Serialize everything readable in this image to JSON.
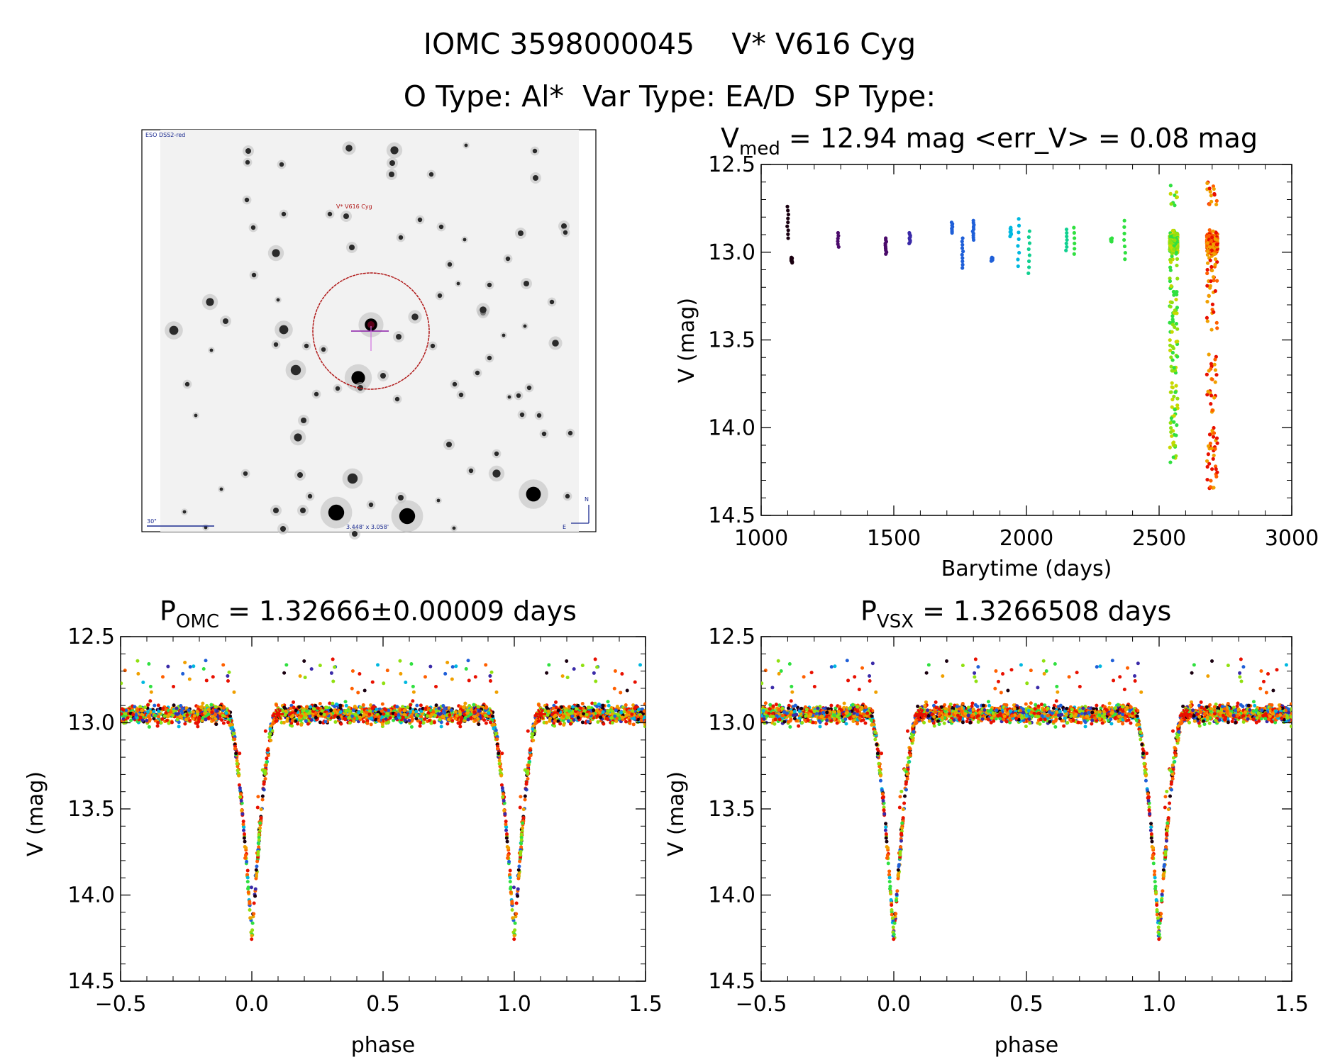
{
  "header": {
    "line1": "IOMC 3598000045    V* V616 Cyg",
    "line2": "O Type: Al*  Var Type: EA/D  SP Type:"
  },
  "finder": {
    "survey_label": "ESO DSS2-red",
    "target_label": "V* V616 Cyg",
    "scale_label": "30\"",
    "fov_label": "3.448' x 3.058'",
    "north_label": "N",
    "east_label": "E"
  },
  "colors": {
    "palette": [
      "#1a0010",
      "#4a0a6a",
      "#3a2aa8",
      "#1f5fd8",
      "#00b8e0",
      "#10d090",
      "#30e040",
      "#90e010",
      "#c8d800",
      "#f0a000",
      "#ff6000",
      "#e81000"
    ],
    "circle": "#b01818",
    "target_text": "#b01818",
    "finder_text": "#1a2a90"
  },
  "chart_data": [
    {
      "id": "lightcurve",
      "type": "scatter",
      "title": "V_med = 12.94 mag <err_V> = 0.08 mag",
      "title_parts": {
        "v": "V",
        "sub": "med",
        "rest": " = 12.94 mag <err_V> = 0.08 mag"
      },
      "xlabel": "Barytime (days)",
      "ylabel": "V (mag)",
      "xlim": [
        1000,
        3000
      ],
      "ylim": [
        14.5,
        12.5
      ],
      "xticks": [
        1000,
        1500,
        2000,
        2500,
        3000
      ],
      "xtick_labels": [
        "1000",
        "1500",
        "2000",
        "2500",
        "3000"
      ],
      "yticks": [
        12.5,
        13.0,
        13.5,
        14.0,
        14.5
      ],
      "ytick_labels": [
        "12.5",
        "13.0",
        "13.5",
        "14.0",
        "14.5"
      ],
      "epochs": [
        {
          "t": 1100,
          "ymin": 12.74,
          "ymax": 12.92,
          "color": 0
        },
        {
          "t": 1115,
          "ymin": 13.03,
          "ymax": 13.06,
          "color": 0
        },
        {
          "t": 1290,
          "ymin": 12.89,
          "ymax": 12.97,
          "color": 1
        },
        {
          "t": 1470,
          "ymin": 12.92,
          "ymax": 13.01,
          "color": 1
        },
        {
          "t": 1560,
          "ymin": 12.89,
          "ymax": 12.95,
          "color": 2
        },
        {
          "t": 1720,
          "ymin": 12.83,
          "ymax": 12.89,
          "color": 3
        },
        {
          "t": 1760,
          "ymin": 12.92,
          "ymax": 13.09,
          "color": 3
        },
        {
          "t": 1800,
          "ymin": 12.82,
          "ymax": 12.93,
          "color": 3
        },
        {
          "t": 1870,
          "ymin": 13.03,
          "ymax": 13.05,
          "color": 3
        },
        {
          "t": 1940,
          "ymin": 12.86,
          "ymax": 12.91,
          "color": 4
        },
        {
          "t": 1970,
          "ymin": 12.81,
          "ymax": 13.08,
          "color": 4
        },
        {
          "t": 2010,
          "ymin": 12.88,
          "ymax": 13.12,
          "color": 5
        },
        {
          "t": 2150,
          "ymin": 12.87,
          "ymax": 12.99,
          "color": 5
        },
        {
          "t": 2180,
          "ymin": 12.86,
          "ymax": 13.01,
          "color": 6
        },
        {
          "t": 2320,
          "ymin": 12.92,
          "ymax": 12.94,
          "color": 6
        },
        {
          "t": 2370,
          "ymin": 12.82,
          "ymax": 13.04,
          "color": 6
        }
      ],
      "dense_epochs": [
        {
          "t_min": 2540,
          "t_max": 2570,
          "ymin": 12.62,
          "ymax": 14.21,
          "colors": [
            6,
            7,
            8
          ]
        },
        {
          "t_min": 2680,
          "t_max": 2720,
          "ymin": 12.6,
          "ymax": 14.36,
          "colors": [
            9,
            10,
            11
          ]
        }
      ]
    },
    {
      "id": "phase-omc",
      "type": "scatter",
      "title": "P_OMC = 1.32666±0.00009 days",
      "title_parts": {
        "v": "P",
        "sub": "OMC",
        "rest": " = 1.32666±0.00009 days"
      },
      "xlabel": "phase",
      "ylabel": "V (mag)",
      "xlim": [
        -0.5,
        1.5
      ],
      "ylim": [
        14.5,
        12.5
      ],
      "xticks": [
        -0.5,
        0.0,
        0.5,
        1.0,
        1.5
      ],
      "xtick_labels": [
        "−0.5",
        "0.0",
        "0.5",
        "1.0",
        "1.5"
      ],
      "yticks": [
        12.5,
        13.0,
        13.5,
        14.0,
        14.5
      ],
      "ytick_labels": [
        "12.5",
        "13.0",
        "13.5",
        "14.0",
        "14.5"
      ],
      "baseline_mag": 12.95,
      "eclipse_depth_mag": 1.3,
      "eclipse_phase": 0.0,
      "eclipse_halfwidth": 0.09,
      "star_markers_phase": [
        0.1,
        1.1
      ]
    },
    {
      "id": "phase-vsx",
      "type": "scatter",
      "title": "P_VSX = 1.3266508 days",
      "title_parts": {
        "v": "P",
        "sub": "VSX",
        "rest": " = 1.3266508 days"
      },
      "xlabel": "phase",
      "ylabel": "V (mag)",
      "xlim": [
        -0.5,
        1.5
      ],
      "ylim": [
        14.5,
        12.5
      ],
      "xticks": [
        -0.5,
        0.0,
        0.5,
        1.0,
        1.5
      ],
      "xtick_labels": [
        "−0.5",
        "0.0",
        "0.5",
        "1.0",
        "1.5"
      ],
      "yticks": [
        12.5,
        13.0,
        13.5,
        14.0,
        14.5
      ],
      "ytick_labels": [
        "12.5",
        "13.0",
        "13.5",
        "14.0",
        "14.5"
      ],
      "baseline_mag": 12.95,
      "eclipse_depth_mag": 1.3,
      "eclipse_phase": 0.0,
      "eclipse_halfwidth": 0.09,
      "star_markers_phase": [
        0.1,
        1.1
      ]
    }
  ]
}
